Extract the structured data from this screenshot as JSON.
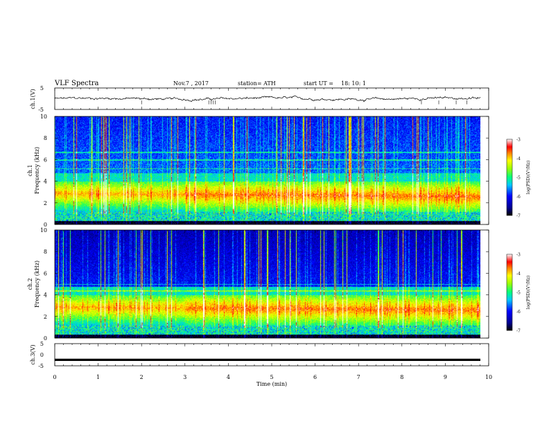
{
  "header": {
    "title": "VLF  Spectra",
    "date": "Nov.7  , 2017",
    "station": "station= ATH",
    "start_label": "start  UT  =",
    "start_time": "18: 10: 1"
  },
  "chart_data": [
    {
      "id": "ch1-waveform",
      "type": "line",
      "ylabel": "ch.1(V)",
      "ylim": [
        -5,
        5
      ],
      "y_ticks": [
        "5",
        "-5"
      ],
      "xlim": [
        0,
        10
      ],
      "baseline": 0,
      "noise_amplitude": 0.6,
      "spikes_at_min": [
        2.0,
        3.55,
        3.6,
        3.65,
        3.7,
        8.45,
        8.85,
        9.25,
        9.5
      ]
    },
    {
      "id": "ch1-spectrogram",
      "type": "heatmap",
      "ylabel": "ch.1\nFrequency (kHz)",
      "ylim": [
        0,
        10
      ],
      "y_ticks": [
        "0",
        "2",
        "4",
        "6",
        "8",
        "10"
      ],
      "xlim": [
        0,
        9.8
      ],
      "colorbar": {
        "label": "log(PSD)(V²/Hz)",
        "range": [
          -7,
          -3
        ],
        "ticks": [
          "-3",
          "-4",
          "-5",
          "-6",
          "-7"
        ]
      }
    },
    {
      "id": "ch2-spectrogram",
      "type": "heatmap",
      "ylabel": "ch.2\nFrequency (kHz)",
      "ylim": [
        0,
        10
      ],
      "y_ticks": [
        "0",
        "2",
        "4",
        "6",
        "8",
        "10"
      ],
      "xlim": [
        0,
        9.8
      ],
      "colorbar": {
        "label": "log(PSD)(V²/Hz)",
        "range": [
          -7,
          -3
        ],
        "ticks": [
          "-3",
          "-4",
          "-5",
          "-6",
          "-7"
        ]
      }
    },
    {
      "id": "ch3-waveform",
      "type": "line",
      "ylabel": "ch.3(V)",
      "ylim": [
        -5,
        5
      ],
      "y_ticks": [
        "5",
        "0",
        "-5"
      ],
      "xlim": [
        0,
        10
      ],
      "baseline": -2.3
    }
  ],
  "x_axis": {
    "label": "Time  (min)",
    "ticks": [
      "0",
      "1",
      "2",
      "3",
      "4",
      "5",
      "6",
      "7",
      "8",
      "9",
      "10"
    ],
    "range": [
      0,
      10
    ]
  },
  "colorbar_labels": {
    "cb1_label": "log(PSD)(V²/Hz)",
    "cb2_label": "log(PSD)(V²/Hz)"
  }
}
